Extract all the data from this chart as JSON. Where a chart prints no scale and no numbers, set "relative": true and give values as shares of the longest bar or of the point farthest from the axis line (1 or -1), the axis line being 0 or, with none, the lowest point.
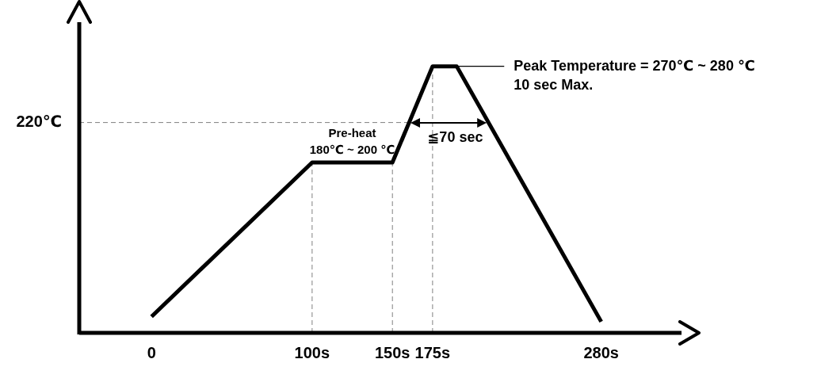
{
  "chart_data": {
    "type": "line",
    "relative": true,
    "x": [
      0,
      100,
      150,
      175,
      190,
      280
    ],
    "series": [
      {
        "color": "#000000",
        "values": [
          0.061,
          0.639,
          0.639,
          1,
          1,
          0.042
        ]
      }
    ],
    "xlim": [
      -45,
      330
    ],
    "xticks": [
      {
        "value": 0,
        "label": "0"
      },
      {
        "value": 100,
        "label": "100s"
      },
      {
        "value": 150,
        "label": "150s"
      },
      {
        "value": 175,
        "label": "175s"
      },
      {
        "value": 280,
        "label": "280s"
      }
    ],
    "tick_labels": "x",
    "grid": false,
    "legend": false,
    "marker": "none",
    "line_style": "solid",
    "ref_lines": [
      {
        "axis": "x",
        "value": 100,
        "color": "#808080",
        "line_style": "dashed"
      },
      {
        "axis": "x",
        "value": 150,
        "color": "#808080",
        "line_style": "dashed"
      },
      {
        "axis": "x",
        "value": 175,
        "color": "#808080",
        "line_style": "dashed"
      },
      {
        "axis": "y",
        "value": 0.789,
        "label": "220℃",
        "color": "#808080",
        "line_style": "dashed"
      }
    ],
    "annotations": [
      "Pre-heat",
      "180℃ ~ 200 ℃",
      "Peak Temperature = 270℃ ~ 280 ℃",
      "10 sec Max.",
      "≦70 sec"
    ]
  }
}
